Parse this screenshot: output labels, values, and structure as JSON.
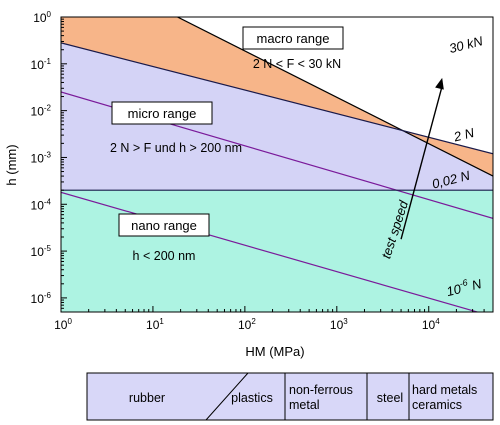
{
  "chart_data": {
    "type": "line",
    "title": "",
    "xlabel": "HM (MPa)",
    "ylabel": "h (mm)",
    "x_scale": "log",
    "y_scale": "log",
    "xlim": [
      1,
      50000
    ],
    "ylim": [
      5e-07,
      1
    ],
    "x_ticks": [
      {
        "base": "10",
        "exp": "0"
      },
      {
        "base": "10",
        "exp": "1"
      },
      {
        "base": "10",
        "exp": "2"
      },
      {
        "base": "10",
        "exp": "3"
      },
      {
        "base": "10",
        "exp": "4"
      }
    ],
    "y_ticks": [
      {
        "base": "10",
        "exp": "0"
      },
      {
        "base": "10",
        "exp": "-1"
      },
      {
        "base": "10",
        "exp": "-2"
      },
      {
        "base": "10",
        "exp": "-3"
      },
      {
        "base": "10",
        "exp": "-4"
      },
      {
        "base": "10",
        "exp": "-5"
      },
      {
        "base": "10",
        "exp": "-6"
      }
    ],
    "grid": false,
    "regions": [
      {
        "name": "macro range",
        "condition": "2 N < F < 30 kN",
        "color": "#f7b589"
      },
      {
        "name": "micro range",
        "condition": "2 N > F und h > 200 nm",
        "color": "#d4d3f6"
      },
      {
        "name": "nano range",
        "condition": "h < 200 nm",
        "color": "#adf3e2"
      }
    ],
    "series": [
      {
        "label": "30 kN",
        "color": "#000000",
        "x": [
          1,
          50000
        ],
        "y": [
          18,
          0.0004
        ]
      },
      {
        "label": "2 N",
        "color": "#1a1a4a",
        "x": [
          1,
          50000
        ],
        "y": [
          0.28,
          0.0012
        ]
      },
      {
        "label": "",
        "color": "#7a1a9a",
        "x": [
          1,
          50000
        ],
        "y": [
          0.025,
          5e-05
        ]
      },
      {
        "label": "0,02 N",
        "color": "#1a1a4a",
        "x": [
          1,
          50000
        ],
        "y": [
          0.0002,
          0.0002
        ]
      },
      {
        "label": "",
        "color": "#7a1a9a",
        "x": [
          1,
          50000
        ],
        "y": [
          0.00018,
          4e-07
        ]
      }
    ],
    "low_force_label": {
      "base": "10",
      "exp": "-6",
      "unit": "N"
    },
    "arrow": {
      "label": "test speed",
      "from": [
        5000,
        1.8e-05
      ],
      "to": [
        14000,
        0.05
      ]
    }
  },
  "materials_bar": {
    "items": [
      "rubber",
      "plastics",
      "non-ferrous\nmetal",
      "steel",
      "hard metals\nceramics"
    ],
    "fill": "#d8d7f8"
  }
}
